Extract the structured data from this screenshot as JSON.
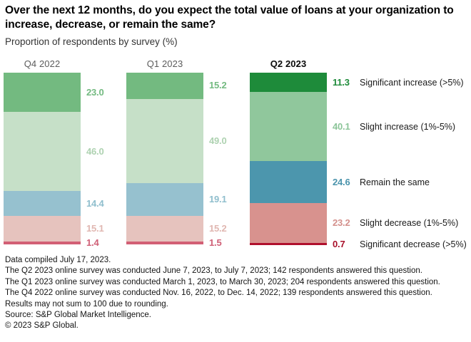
{
  "title": "Over the next 12 months, do you expect the total value of loans at your organization to increase, decrease, or remain the same?",
  "subtitle": "Proportion of respondents by survey (%)",
  "chart_data": {
    "type": "bar",
    "stacked": true,
    "orientation": "vertical",
    "unit": "%",
    "value_axis_range": [
      0,
      100
    ],
    "grid": false,
    "legend_position": "right",
    "categories": [
      "Significant increase (>5%)",
      "Slight increase (1%-5%)",
      "Remain the same",
      "Slight decrease (1%-5%)",
      "Significant decrease (>5%)"
    ],
    "series": [
      {
        "name": "Q4 2022",
        "highlighted": false,
        "values": [
          23.0,
          46.0,
          14.4,
          15.1,
          1.4
        ]
      },
      {
        "name": "Q1 2023",
        "highlighted": false,
        "values": [
          15.2,
          49.0,
          19.1,
          15.2,
          1.5
        ]
      },
      {
        "name": "Q2 2023",
        "highlighted": true,
        "values": [
          11.3,
          40.1,
          24.6,
          23.2,
          0.7
        ]
      }
    ],
    "colors": {
      "muted": [
        "#73ba80",
        "#c6e0c8",
        "#96c1cf",
        "#e6c3be",
        "#d25f75"
      ],
      "highlight": [
        "#1e8b3a",
        "#90c79c",
        "#4c96ad",
        "#d8928e",
        "#b00f2c"
      ],
      "label_muted": [
        "#73ba80",
        "#aed2b1",
        "#8fbecd",
        "#e0b7b1",
        "#cf5f76"
      ],
      "label_highlight": [
        "#1e8b3a",
        "#8cc599",
        "#4b94ac",
        "#d4908c",
        "#a8102a"
      ]
    }
  },
  "footnotes": [
    "Data compiled July 17, 2023.",
    "The Q2 2023 online survey was conducted June 7, 2023, to July 7, 2023; 142 respondents answered this question.",
    "The Q1 2023 online survey was conducted March 1, 2023, to March 30, 2023; 204 respondents answered this question.",
    "The Q4 2022 online survey was conducted Nov. 16, 2022, to Dec. 14, 2022; 139 respondents answered this question.",
    "Results may not sum to 100 due to rounding.",
    "Source: S&P Global Market Intelligence.",
    "© 2023 S&P Global."
  ]
}
